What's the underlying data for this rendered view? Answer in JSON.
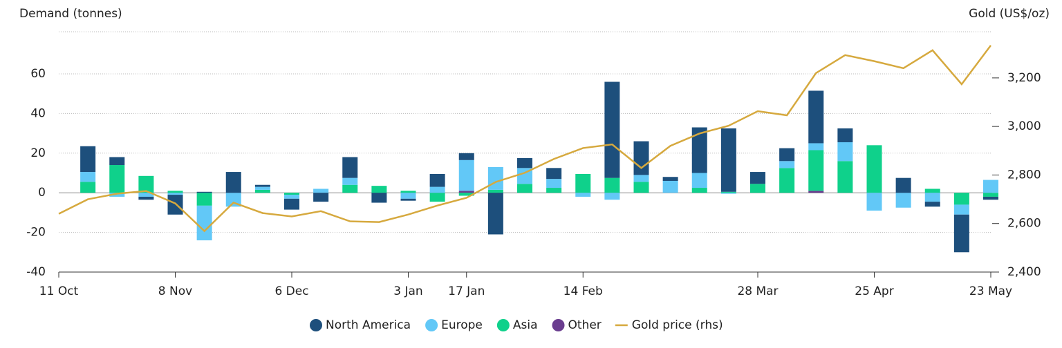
{
  "chart_data": {
    "type": "bar",
    "stacked": true,
    "y_label": "Demand (tonnes)",
    "y2_label": "Gold (US$/oz)",
    "categories": [
      "11 Oct",
      null,
      null,
      null,
      "8 Nov",
      null,
      null,
      null,
      "6 Dec",
      null,
      null,
      null,
      "3 Jan",
      null,
      "17 Jan",
      null,
      null,
      null,
      "14 Feb",
      null,
      null,
      null,
      null,
      null,
      "28 Mar",
      null,
      null,
      null,
      "25 Apr",
      null,
      null,
      null,
      "23 May"
    ],
    "ylim": [
      -40,
      80
    ],
    "yticks": [
      -40,
      -20,
      0,
      20,
      40,
      60
    ],
    "y2lim": [
      2400,
      3380
    ],
    "y2ticks": [
      {
        "value": 2400,
        "label": "2,400"
      },
      {
        "value": 2600,
        "label": "2,600"
      },
      {
        "value": 2800,
        "label": "2,800"
      },
      {
        "value": 3000,
        "label": "3,000"
      },
      {
        "value": 3200,
        "label": "3,200"
      }
    ],
    "grid": true,
    "series": [
      {
        "name": "North America",
        "type": "bar",
        "color": "#1d4f7c",
        "values": [
          null,
          13,
          4,
          -1.5,
          -10,
          0.5,
          10.5,
          1,
          -5.5,
          -4.5,
          10.5,
          -5,
          -1,
          6.5,
          3.5,
          -21,
          5,
          5.5,
          0,
          48.5,
          17,
          2,
          23,
          32,
          6,
          6.5,
          26.5,
          7,
          0,
          7.5,
          -2.5,
          -19,
          -1.5
        ]
      },
      {
        "name": "Europe",
        "type": "bar",
        "color": "#62c8f7",
        "values": [
          null,
          5,
          -2,
          -2,
          -1,
          -17.5,
          -7,
          1.5,
          -2,
          2,
          3.5,
          0,
          -3,
          3,
          15.5,
          11.5,
          8,
          4.5,
          -2,
          -3.5,
          3.5,
          6,
          7.5,
          -0.5,
          0,
          3.5,
          3.5,
          9.5,
          -9,
          -7.5,
          -4.5,
          -5,
          6.5
        ]
      },
      {
        "name": "Asia",
        "type": "bar",
        "color": "#0fd18b",
        "values": [
          null,
          5.5,
          14,
          8.5,
          1,
          -6.5,
          0,
          1.5,
          -1,
          0,
          4,
          3.5,
          1,
          -4.5,
          -1.5,
          1.5,
          4.5,
          2.5,
          9.5,
          7.5,
          5.5,
          0,
          2.5,
          0.5,
          4.5,
          12.5,
          20.5,
          16,
          24,
          0,
          2,
          -6,
          -2
        ]
      },
      {
        "name": "Other",
        "type": "bar",
        "color": "#6a3d8f",
        "values": [
          null,
          0,
          0,
          0,
          0,
          0,
          0,
          0,
          0,
          0,
          0,
          0,
          0,
          0,
          1,
          0,
          0,
          0,
          0,
          0,
          0,
          0,
          0,
          0,
          0,
          0,
          1,
          0,
          0,
          0,
          0,
          0,
          0
        ]
      },
      {
        "name": "Gold price (rhs)",
        "type": "line",
        "axis": "y2",
        "color": "#d6a93e",
        "values": [
          2640,
          2700,
          2723,
          2734,
          2683,
          2569,
          2686,
          2643,
          2629,
          2651,
          2609,
          2606,
          2637,
          2674,
          2706,
          2771,
          2809,
          2866,
          2911,
          2926,
          2829,
          2920,
          2971,
          3003,
          3063,
          3046,
          3220,
          3294,
          3269,
          3240,
          3314,
          3174,
          3334
        ]
      }
    ]
  }
}
